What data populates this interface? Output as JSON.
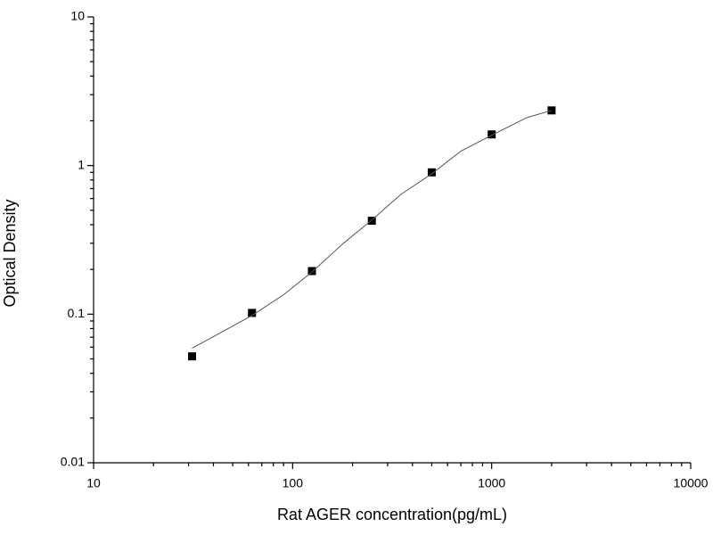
{
  "chart_data": {
    "type": "scatter",
    "x_label": "Rat AGER concentration(pg/mL)",
    "y_label": "Optical Density",
    "xscale": "log",
    "yscale": "log",
    "xlim": [
      10,
      10000
    ],
    "ylim": [
      0.01,
      10
    ],
    "xticks": [
      10,
      100,
      1000,
      10000
    ],
    "yticks": [
      0.01,
      0.1,
      1,
      10
    ],
    "xminorticks": [
      20,
      30,
      40,
      50,
      60,
      70,
      80,
      90,
      200,
      300,
      400,
      500,
      600,
      700,
      800,
      900,
      2000,
      3000,
      4000,
      5000,
      6000,
      7000,
      8000,
      9000
    ],
    "yminorticks": [
      0.02,
      0.03,
      0.04,
      0.05,
      0.06,
      0.07,
      0.08,
      0.09,
      0.2,
      0.3,
      0.4,
      0.5,
      0.6,
      0.7,
      0.8,
      0.9,
      2,
      3,
      4,
      5,
      6,
      7,
      8,
      9
    ],
    "series": [
      {
        "kind": "points",
        "color": "#000000",
        "x": [
          31.25,
          62.5,
          125,
          250,
          500,
          1000,
          2000
        ],
        "values": [
          0.052,
          0.102,
          0.195,
          0.425,
          0.9,
          1.62,
          2.35
        ]
      },
      {
        "kind": "curve",
        "color": "#555555",
        "x": [
          31.25,
          45,
          62.5,
          90,
          125,
          180,
          250,
          350,
          500,
          700,
          1000,
          1500,
          2000
        ],
        "values": [
          0.059,
          0.077,
          0.098,
          0.135,
          0.192,
          0.3,
          0.43,
          0.64,
          0.88,
          1.25,
          1.6,
          2.1,
          2.35
        ]
      }
    ]
  }
}
